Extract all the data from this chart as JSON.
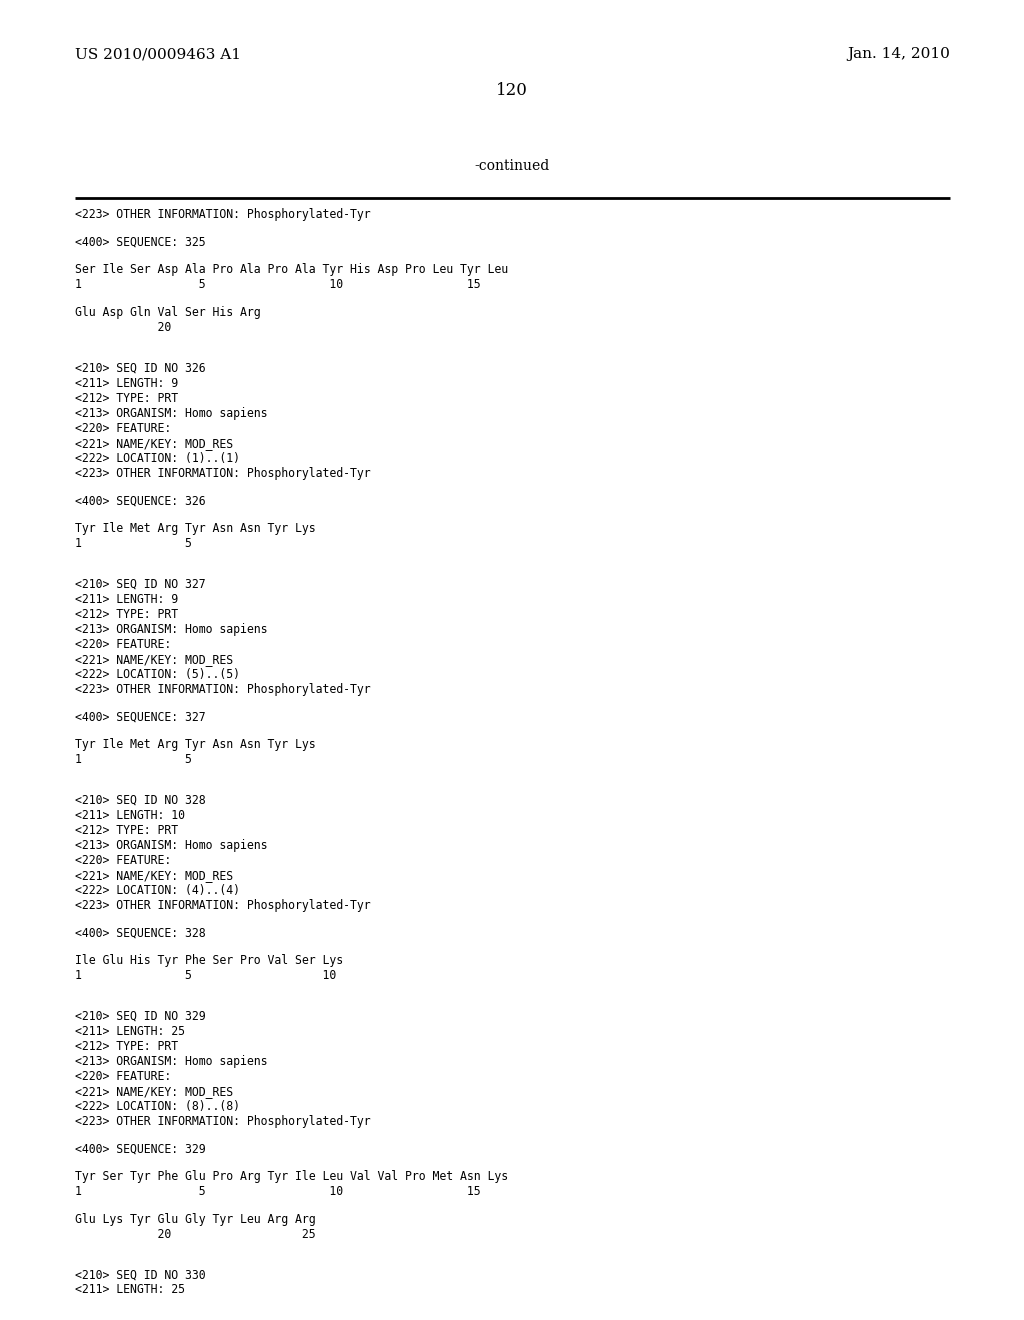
{
  "bg_color": "#ffffff",
  "header_left": "US 2010/0009463 A1",
  "header_right": "Jan. 14, 2010",
  "page_number": "120",
  "continued_label": "-continued",
  "content_lines": [
    "<223> OTHER INFORMATION: Phosphorylated-Tyr",
    "",
    "<400> SEQUENCE: 325",
    "",
    "Ser Ile Ser Asp Ala Pro Ala Pro Ala Tyr His Asp Pro Leu Tyr Leu",
    "1                 5                  10                  15",
    "",
    "Glu Asp Gln Val Ser His Arg",
    "            20",
    "",
    "",
    "<210> SEQ ID NO 326",
    "<211> LENGTH: 9",
    "<212> TYPE: PRT",
    "<213> ORGANISM: Homo sapiens",
    "<220> FEATURE:",
    "<221> NAME/KEY: MOD_RES",
    "<222> LOCATION: (1)..(1)",
    "<223> OTHER INFORMATION: Phosphorylated-Tyr",
    "",
    "<400> SEQUENCE: 326",
    "",
    "Tyr Ile Met Arg Tyr Asn Asn Tyr Lys",
    "1               5",
    "",
    "",
    "<210> SEQ ID NO 327",
    "<211> LENGTH: 9",
    "<212> TYPE: PRT",
    "<213> ORGANISM: Homo sapiens",
    "<220> FEATURE:",
    "<221> NAME/KEY: MOD_RES",
    "<222> LOCATION: (5)..(5)",
    "<223> OTHER INFORMATION: Phosphorylated-Tyr",
    "",
    "<400> SEQUENCE: 327",
    "",
    "Tyr Ile Met Arg Tyr Asn Asn Tyr Lys",
    "1               5",
    "",
    "",
    "<210> SEQ ID NO 328",
    "<211> LENGTH: 10",
    "<212> TYPE: PRT",
    "<213> ORGANISM: Homo sapiens",
    "<220> FEATURE:",
    "<221> NAME/KEY: MOD_RES",
    "<222> LOCATION: (4)..(4)",
    "<223> OTHER INFORMATION: Phosphorylated-Tyr",
    "",
    "<400> SEQUENCE: 328",
    "",
    "Ile Glu His Tyr Phe Ser Pro Val Ser Lys",
    "1               5                   10",
    "",
    "",
    "<210> SEQ ID NO 329",
    "<211> LENGTH: 25",
    "<212> TYPE: PRT",
    "<213> ORGANISM: Homo sapiens",
    "<220> FEATURE:",
    "<221> NAME/KEY: MOD_RES",
    "<222> LOCATION: (8)..(8)",
    "<223> OTHER INFORMATION: Phosphorylated-Tyr",
    "",
    "<400> SEQUENCE: 329",
    "",
    "Tyr Ser Tyr Phe Glu Pro Arg Tyr Ile Leu Val Val Pro Met Asn Lys",
    "1                 5                  10                  15",
    "",
    "Glu Lys Tyr Glu Gly Tyr Leu Arg Arg",
    "            20                   25",
    "",
    "",
    "<210> SEQ ID NO 330",
    "<211> LENGTH: 25"
  ]
}
